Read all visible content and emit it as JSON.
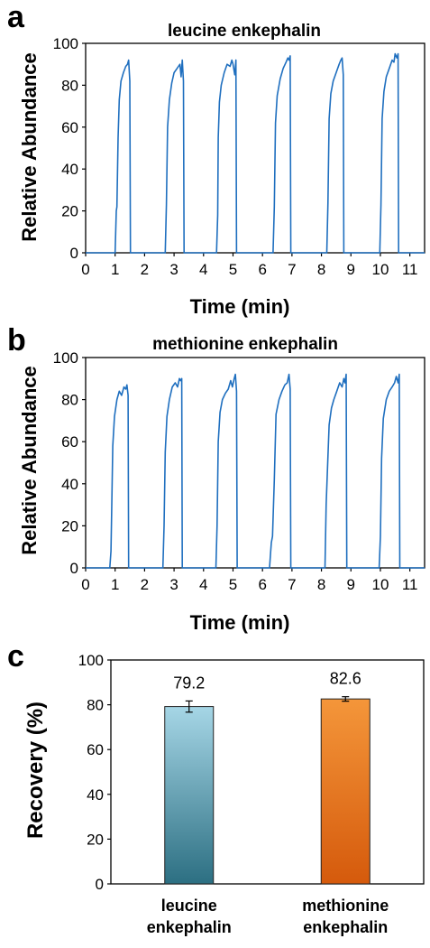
{
  "chart_data": [
    {
      "panel": "a",
      "type": "line",
      "title": "leucine enkephalin",
      "xlabel": "Time  (min)",
      "ylabel": "Relative Abundance",
      "xlim": [
        0,
        11.5
      ],
      "ylim": [
        0,
        100
      ],
      "xticks": [
        "0",
        "1",
        "2",
        "3",
        "4",
        "5",
        "6",
        "7",
        "8",
        "9",
        "10",
        "11"
      ],
      "yticks": [
        "0",
        "20",
        "40",
        "60",
        "80",
        "100"
      ],
      "color": "#1f6fbf",
      "series": [
        {
          "x": [
            0,
            0.6,
            1.0,
            1.04,
            1.06,
            1.1,
            1.14,
            1.2,
            1.28,
            1.36,
            1.42,
            1.46,
            1.5,
            1.52,
            2.7,
            2.74,
            2.78,
            2.84,
            2.92,
            3.0,
            3.1,
            3.2,
            3.24,
            3.28,
            3.32,
            3.34,
            4.44,
            4.48,
            4.5,
            4.54,
            4.6,
            4.7,
            4.8,
            4.9,
            4.96,
            5.0,
            5.06,
            5.1,
            5.12,
            6.36,
            6.4,
            6.44,
            6.5,
            6.6,
            6.7,
            6.8,
            6.86,
            6.9,
            6.94,
            6.96,
            8.18,
            8.22,
            8.26,
            8.32,
            8.4,
            8.5,
            8.6,
            8.66,
            8.7,
            8.74,
            8.76,
            9.98,
            10.02,
            10.06,
            10.12,
            10.2,
            10.3,
            10.4,
            10.46,
            10.5,
            10.56,
            10.6,
            10.62,
            11.5
          ],
          "y": [
            0,
            0,
            0,
            20,
            22,
            55,
            73,
            82,
            86,
            89,
            90,
            92,
            82,
            0,
            0,
            23,
            60,
            73,
            81,
            86,
            88,
            90,
            84,
            92,
            82,
            0,
            0,
            18,
            55,
            72,
            80,
            86,
            90,
            89,
            92,
            90,
            85,
            92,
            0,
            0,
            22,
            62,
            75,
            83,
            88,
            91,
            93,
            92,
            94,
            0,
            0,
            24,
            64,
            76,
            82,
            86,
            90,
            92,
            93,
            85,
            0,
            0,
            23,
            64,
            77,
            84,
            88,
            92,
            91,
            95,
            93,
            95,
            0,
            0
          ]
        }
      ]
    },
    {
      "panel": "b",
      "type": "line",
      "title": "methionine enkephalin",
      "xlabel": "Time  (min)",
      "ylabel": "Relative Abundance",
      "xlim": [
        0,
        11.5
      ],
      "ylim": [
        0,
        100
      ],
      "xticks": [
        "0",
        "1",
        "2",
        "3",
        "4",
        "5",
        "6",
        "7",
        "8",
        "9",
        "10",
        "11"
      ],
      "yticks": [
        "0",
        "20",
        "40",
        "60",
        "80",
        "100"
      ],
      "color": "#1f6fbf",
      "series": [
        {
          "x": [
            0,
            0.7,
            0.82,
            0.86,
            0.88,
            0.92,
            0.98,
            1.06,
            1.14,
            1.22,
            1.3,
            1.36,
            1.4,
            1.44,
            1.46,
            2.62,
            2.66,
            2.7,
            2.76,
            2.84,
            2.94,
            3.04,
            3.12,
            3.18,
            3.22,
            3.26,
            3.28,
            4.42,
            4.46,
            4.5,
            4.56,
            4.64,
            4.74,
            4.84,
            4.92,
            4.98,
            5.04,
            5.08,
            5.12,
            5.14,
            6.24,
            6.28,
            6.3,
            6.34,
            6.4,
            6.46,
            6.56,
            6.66,
            6.76,
            6.84,
            6.9,
            6.94,
            6.96,
            8.12,
            8.16,
            8.2,
            8.26,
            8.34,
            8.42,
            8.52,
            8.62,
            8.7,
            8.76,
            8.8,
            8.84,
            8.86,
            9.96,
            10.0,
            10.04,
            10.1,
            10.2,
            10.3,
            10.4,
            10.48,
            10.54,
            10.6,
            10.64,
            10.66,
            11.5
          ],
          "y": [
            0,
            0,
            0,
            8,
            25,
            58,
            72,
            80,
            84,
            82,
            86,
            85,
            87,
            82,
            0,
            0,
            20,
            55,
            72,
            80,
            86,
            88,
            86,
            90,
            89,
            90,
            0,
            0,
            20,
            60,
            74,
            80,
            83,
            85,
            89,
            86,
            90,
            92,
            84,
            0,
            0,
            8,
            12,
            15,
            42,
            73,
            80,
            84,
            87,
            88,
            92,
            85,
            0,
            0,
            30,
            45,
            68,
            76,
            80,
            84,
            88,
            86,
            90,
            88,
            92,
            0,
            0,
            15,
            52,
            71,
            80,
            84,
            86,
            88,
            91,
            88,
            92,
            0,
            0
          ]
        }
      ]
    },
    {
      "panel": "c",
      "type": "bar",
      "categories": [
        "leucine enkephalin",
        "methionine enkephalin"
      ],
      "category_lines": [
        [
          "leucine",
          "enkephalin"
        ],
        [
          "methionine",
          "enkephalin"
        ]
      ],
      "values": [
        79.2,
        82.6
      ],
      "value_labels": [
        "79.2",
        "82.6"
      ],
      "errors": [
        2.5,
        1.0
      ],
      "ylabel": "Recovery  (%)",
      "ylim": [
        0,
        100
      ],
      "yticks": [
        "0",
        "20",
        "40",
        "60",
        "80",
        "100"
      ],
      "colors": [
        {
          "top": "#a6d6e6",
          "bottom": "#2c6f82"
        },
        {
          "top": "#f4963a",
          "bottom": "#d55a0c"
        }
      ]
    }
  ]
}
